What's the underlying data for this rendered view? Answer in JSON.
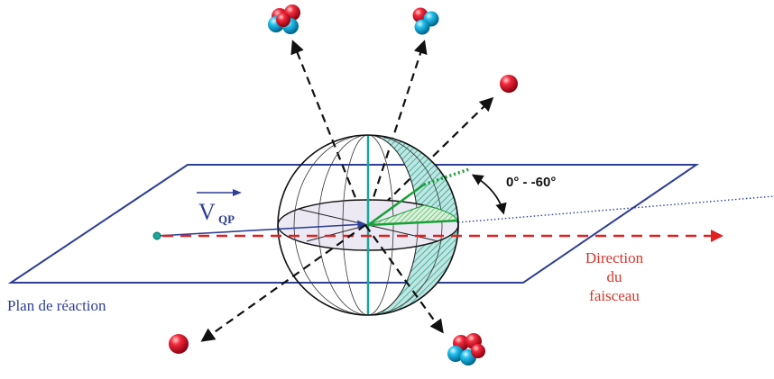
{
  "labels": {
    "velocity": "V",
    "velocity_subscript": "QP",
    "angle_range": "0°  -  -60°",
    "plane": "Plan de réaction",
    "beam_line1": "Direction",
    "beam_line2": "du",
    "beam_line3": "faisceau"
  },
  "colors": {
    "plane": "#2e3f96",
    "velocity": "#2e3f96",
    "beam": "#e02020",
    "beam_text": "#d8352a",
    "plane_text": "#2e3f96",
    "teal": "#1aa79a",
    "green": "#18a038",
    "proton": "#e0102a",
    "neutron": "#19b4e6",
    "arrow": "#111111"
  }
}
